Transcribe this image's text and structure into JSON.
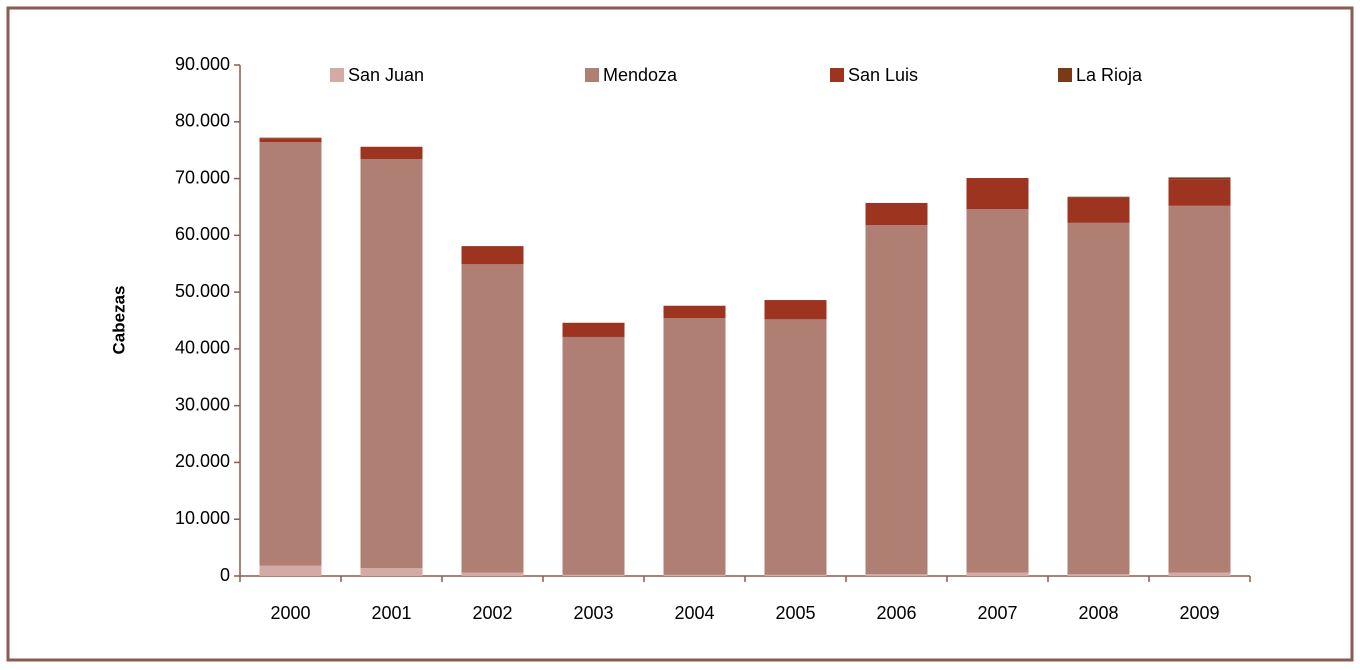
{
  "chart_data": {
    "type": "stacked_bar",
    "y_label": "Cabezas",
    "categories": [
      "2000",
      "2001",
      "2002",
      "2003",
      "2004",
      "2005",
      "2006",
      "2007",
      "2008",
      "2009"
    ],
    "series": [
      {
        "name": "San Juan",
        "color": "#d4aaa4",
        "values": [
          1800,
          1400,
          600,
          200,
          200,
          200,
          300,
          600,
          300,
          600
        ]
      },
      {
        "name": "Mendoza",
        "color": "#b07f73",
        "values": [
          74600,
          72000,
          54300,
          41900,
          45200,
          45000,
          61500,
          64000,
          61900,
          64600
        ]
      },
      {
        "name": "San Luis",
        "color": "#9c3420",
        "values": [
          700,
          2200,
          3200,
          2500,
          2200,
          3400,
          3900,
          5500,
          4400,
          4700
        ]
      },
      {
        "name": "La Rioja",
        "color": "#7a3a16",
        "values": [
          100,
          0,
          0,
          0,
          0,
          0,
          0,
          0,
          200,
          300
        ]
      }
    ],
    "ylim": [
      0,
      90000
    ],
    "yticks": [
      0,
      {
        "value": 10000,
        "label": "10.000"
      },
      {
        "value": 20000,
        "label": "20.000"
      },
      {
        "value": 30000,
        "label": "30.000"
      },
      {
        "value": 40000,
        "label": "40.000"
      },
      {
        "value": 50000,
        "label": "50.000"
      },
      {
        "value": 60000,
        "label": "60.000"
      },
      {
        "value": 70000,
        "label": "70.000"
      },
      {
        "value": 80000,
        "label": "80.000"
      },
      {
        "value": 90000,
        "label": "90.000"
      }
    ],
    "legend": "top"
  }
}
